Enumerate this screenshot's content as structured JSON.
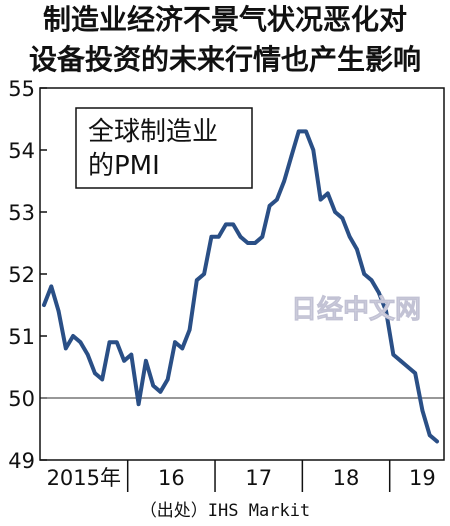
{
  "header": {
    "title_line1": "制造业经济不景气状况恶化对",
    "title_line2": "设备投资的未来行情也产生影响"
  },
  "inset_label": {
    "line1": "全球制造业",
    "line2": "的PMI"
  },
  "watermark": "日经中文网",
  "source": "（出处）IHS Markit",
  "colors": {
    "line": "#2a4f86",
    "axis": "#111111",
    "reference": "#777777",
    "watermark": "#d8d8e6"
  },
  "chart_data": {
    "type": "line",
    "title": "全球制造业的PMI",
    "xlabel": "",
    "ylabel": "",
    "ylim": [
      49,
      55
    ],
    "y_ticks": [
      49,
      50,
      51,
      52,
      53,
      54,
      55
    ],
    "reference_line": 50,
    "grid": false,
    "x_year_labels": [
      {
        "label": "2015年",
        "start_index": 0
      },
      {
        "label": "16",
        "start_index": 12
      },
      {
        "label": "17",
        "start_index": 24
      },
      {
        "label": "18",
        "start_index": 36
      },
      {
        "label": "19",
        "start_index": 48
      }
    ],
    "series": [
      {
        "values": [
          51.5,
          51.8,
          51.4,
          50.8,
          51.0,
          50.9,
          50.7,
          50.4,
          50.3,
          50.9,
          50.9,
          50.6,
          50.7,
          49.9,
          50.6,
          50.2,
          50.1,
          50.3,
          50.9,
          50.8,
          51.1,
          51.9,
          52.0,
          52.6,
          52.6,
          52.8,
          52.8,
          52.6,
          52.5,
          52.5,
          52.6,
          53.1,
          53.2,
          53.5,
          53.9,
          54.3,
          54.3,
          54.0,
          53.2,
          53.3,
          53.0,
          52.9,
          52.6,
          52.4,
          52.0,
          51.9,
          51.7,
          51.4,
          50.7,
          50.6,
          50.5,
          50.4,
          49.8,
          49.4,
          49.3
        ]
      }
    ]
  }
}
